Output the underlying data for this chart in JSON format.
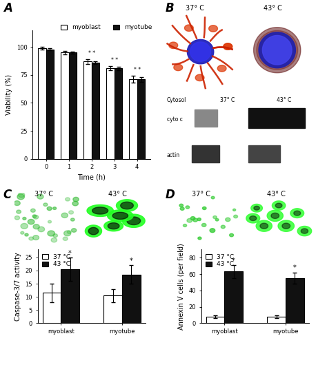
{
  "panel_A": {
    "time": [
      0,
      1,
      2,
      3,
      4
    ],
    "myoblast_mean": [
      99,
      95,
      87,
      81,
      71
    ],
    "myoblast_err": [
      1,
      1.5,
      2,
      2,
      3
    ],
    "myotube_mean": [
      98,
      95,
      86,
      81,
      71
    ],
    "myotube_err": [
      1,
      1,
      1.5,
      1.5,
      2
    ],
    "sig_timepoints": [
      2,
      3,
      4
    ],
    "ylabel": "Viability (%)",
    "xlabel": "Time (h)",
    "ylim": [
      0,
      115
    ],
    "yticks": [
      0,
      25,
      50,
      75,
      100
    ],
    "legend_labels": [
      "myoblast",
      "myotube"
    ]
  },
  "panel_C": {
    "categories": [
      "myoblast",
      "myotube"
    ],
    "ctrl_mean": [
      11.5,
      10.5
    ],
    "ctrl_err": [
      3.5,
      2.5
    ],
    "heat_mean": [
      20.5,
      18.5
    ],
    "heat_err": [
      4.5,
      3.5
    ],
    "ylabel": "Caspase-3/7 activity",
    "ylim": [
      0,
      28
    ],
    "yticks": [
      0,
      5,
      10,
      15,
      20,
      25
    ],
    "legend_labels": [
      "37 °C",
      "43 °C"
    ]
  },
  "panel_D": {
    "categories": [
      "myoblast",
      "myotube"
    ],
    "ctrl_mean": [
      8,
      8
    ],
    "ctrl_err": [
      2,
      2
    ],
    "heat_mean": [
      63,
      55
    ],
    "heat_err": [
      8,
      7
    ],
    "ylabel": "Annexin V cells (per field)",
    "ylim": [
      0,
      90
    ],
    "yticks": [
      0,
      20,
      40,
      60,
      80
    ],
    "legend_labels": [
      "37 °C",
      "43 °C"
    ]
  },
  "colors": {
    "white_bar": "#ffffff",
    "black_bar": "#111111",
    "bar_edge": "#000000"
  },
  "panel_label_fontsize": 12,
  "axis_fontsize": 7,
  "tick_fontsize": 6,
  "legend_fontsize": 6.5
}
